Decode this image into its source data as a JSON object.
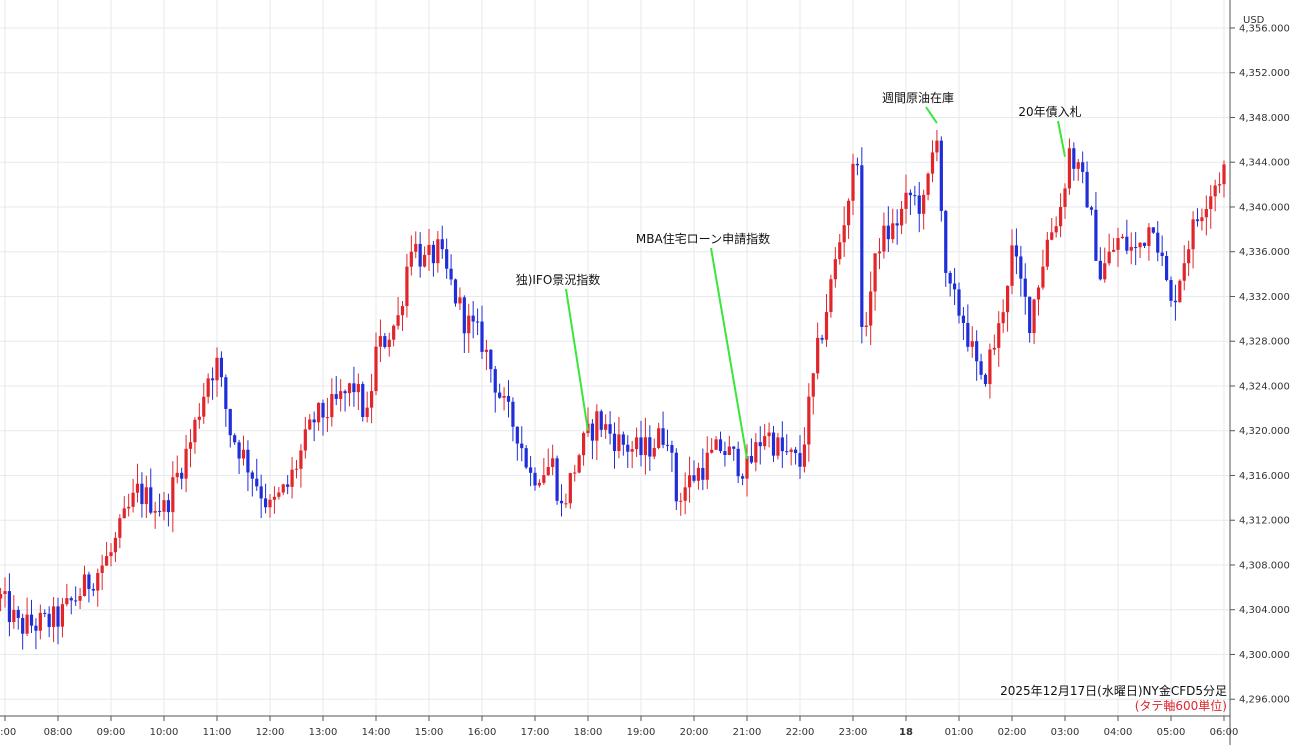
{
  "chart_data": {
    "type": "candlestick",
    "title": "2025年12月17日(水曜日)NY金CFD5分足",
    "subtitle": "(タテ軸600単位)",
    "currency_label": "USD",
    "ylim": [
      4294.5,
      4358.5
    ],
    "y_ticks": [
      "4,296.000",
      "4,300.000",
      "4,304.000",
      "4,308.000",
      "4,312.000",
      "4,316.000",
      "4,320.000",
      "4,324.000",
      "4,328.000",
      "4,332.000",
      "4,336.000",
      "4,340.000",
      "4,344.000",
      "4,348.000",
      "4,352.000",
      "4,356.000"
    ],
    "x_ticks": [
      "7:00",
      "08:00",
      "09:00",
      "10:00",
      "11:00",
      "12:00",
      "13:00",
      "14:00",
      "15:00",
      "16:00",
      "17:00",
      "18:00",
      "19:00",
      "20:00",
      "21:00",
      "22:00",
      "23:00",
      "18",
      "01:00",
      "02:00",
      "03:00",
      "04:00",
      "05:00",
      "06:00"
    ],
    "x_start": "06:55",
    "interval_minutes": 5,
    "grid": true,
    "colors": {
      "up": "#e0252b",
      "down": "#1f2ed8",
      "leader": "#39e639",
      "caption_red": "#e0252b"
    },
    "close_path": [
      [
        "06:55",
        4305.0
      ],
      [
        "07:15",
        4302.5
      ],
      [
        "07:45",
        4302.8
      ],
      [
        "08:00",
        4303.2
      ],
      [
        "08:30",
        4306.0
      ],
      [
        "09:00",
        4309.0
      ],
      [
        "09:15",
        4312.0
      ],
      [
        "09:30",
        4314.5
      ],
      [
        "10:00",
        4313.0
      ],
      [
        "10:30",
        4319.0
      ],
      [
        "10:50",
        4325.0
      ],
      [
        "11:00",
        4326.0
      ],
      [
        "11:15",
        4320.0
      ],
      [
        "11:35",
        4317.0
      ],
      [
        "12:00",
        4313.0
      ],
      [
        "12:20",
        4315.0
      ],
      [
        "12:50",
        4321.0
      ],
      [
        "13:10",
        4322.0
      ],
      [
        "13:35",
        4324.0
      ],
      [
        "13:50",
        4321.0
      ],
      [
        "14:00",
        4327.0
      ],
      [
        "14:25",
        4330.0
      ],
      [
        "14:40",
        4337.0
      ],
      [
        "14:55",
        4335.0
      ],
      [
        "15:10",
        4336.0
      ],
      [
        "15:40",
        4330.0
      ],
      [
        "16:00",
        4328.0
      ],
      [
        "16:25",
        4322.0
      ],
      [
        "16:40",
        4320.0
      ],
      [
        "16:55",
        4316.0
      ],
      [
        "17:20",
        4317.0
      ],
      [
        "17:30",
        4313.0
      ],
      [
        "17:50",
        4318.0
      ],
      [
        "18:10",
        4321.0
      ],
      [
        "18:35",
        4319.0
      ],
      [
        "19:00",
        4318.0
      ],
      [
        "19:30",
        4320.0
      ],
      [
        "19:40",
        4314.0
      ],
      [
        "20:00",
        4316.0
      ],
      [
        "20:30",
        4318.5
      ],
      [
        "21:00",
        4316.5
      ],
      [
        "21:20",
        4320.0
      ],
      [
        "21:40",
        4318.0
      ],
      [
        "22:00",
        4317.0
      ],
      [
        "22:20",
        4327.0
      ],
      [
        "22:40",
        4335.0
      ],
      [
        "22:55",
        4341.0
      ],
      [
        "23:05",
        4345.0
      ],
      [
        "23:10",
        4328.0
      ],
      [
        "23:30",
        4337.0
      ],
      [
        "23:45",
        4338.0
      ],
      [
        "00:05",
        4341.0
      ],
      [
        "00:20",
        4340.0
      ],
      [
        "00:35",
        4347.0
      ],
      [
        "00:45",
        4333.0
      ],
      [
        "01:05",
        4330.0
      ],
      [
        "01:25",
        4324.0
      ],
      [
        "01:45",
        4329.0
      ],
      [
        "02:00",
        4336.0
      ],
      [
        "02:20",
        4330.0
      ],
      [
        "02:40",
        4337.0
      ],
      [
        "02:55",
        4340.0
      ],
      [
        "03:05",
        4345.0
      ],
      [
        "03:25",
        4341.0
      ],
      [
        "03:40",
        4334.0
      ],
      [
        "04:00",
        4337.0
      ],
      [
        "04:20",
        4336.0
      ],
      [
        "04:40",
        4339.0
      ],
      [
        "05:00",
        4331.0
      ],
      [
        "05:20",
        4337.0
      ],
      [
        "05:40",
        4341.0
      ],
      [
        "06:05",
        4344.0
      ]
    ],
    "annotations": [
      {
        "label": "独)IFO景況指数",
        "time": "18:00",
        "price": 4320.0
      },
      {
        "label": "MBA住宅ローン申請指数",
        "time": "21:00",
        "price": 4317.5
      },
      {
        "label": "週間原油在庫",
        "time": "00:35",
        "price": 4347.5
      },
      {
        "label": "20年債入札",
        "time": "03:00",
        "price": 4344.5
      }
    ]
  }
}
